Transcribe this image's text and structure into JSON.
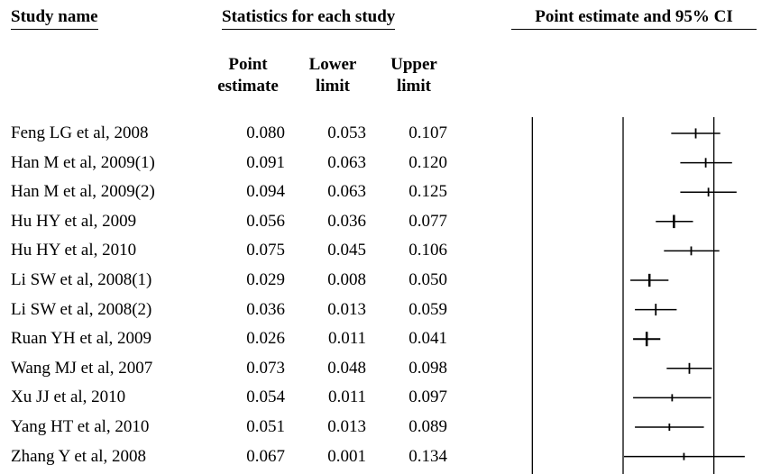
{
  "headers": {
    "study_name": "Study name",
    "statistics": "Statistics for each study",
    "ci": "Point estimate and 95% CI"
  },
  "columns": {
    "point": [
      "Point",
      "estimate"
    ],
    "lower": [
      "Lower",
      "limit"
    ],
    "upper": [
      "Upper",
      "limit"
    ]
  },
  "chart_data": {
    "type": "forest",
    "x_range": [
      -0.15,
      0.15
    ],
    "reference_lines": [
      -0.1,
      0.0,
      0.1
    ],
    "rows": [
      {
        "name": "Feng LG et al, 2008",
        "point": "0.080",
        "lower": "0.053",
        "upper": "0.107"
      },
      {
        "name": "Han M et al, 2009(1)",
        "point": "0.091",
        "lower": "0.063",
        "upper": "0.120"
      },
      {
        "name": "Han M et al, 2009(2)",
        "point": "0.094",
        "lower": "0.063",
        "upper": "0.125"
      },
      {
        "name": "Hu HY et al, 2009",
        "point": "0.056",
        "lower": "0.036",
        "upper": "0.077"
      },
      {
        "name": "Hu HY et al, 2010",
        "point": "0.075",
        "lower": "0.045",
        "upper": "0.106"
      },
      {
        "name": "Li SW et al, 2008(1)",
        "point": "0.029",
        "lower": "0.008",
        "upper": "0.050"
      },
      {
        "name": "Li SW et al, 2008(2)",
        "point": "0.036",
        "lower": "0.013",
        "upper": "0.059"
      },
      {
        "name": "Ruan YH et al, 2009",
        "point": "0.026",
        "lower": "0.011",
        "upper": "0.041"
      },
      {
        "name": "Wang MJ et al, 2007",
        "point": "0.073",
        "lower": "0.048",
        "upper": "0.098"
      },
      {
        "name": "Xu JJ et al, 2010",
        "point": "0.054",
        "lower": "0.011",
        "upper": "0.097"
      },
      {
        "name": "Yang HT et al, 2010",
        "point": "0.051",
        "lower": "0.013",
        "upper": "0.089"
      },
      {
        "name": "Zhang Y et al, 2008",
        "point": "0.067",
        "lower": "0.001",
        "upper": "0.134"
      }
    ]
  }
}
